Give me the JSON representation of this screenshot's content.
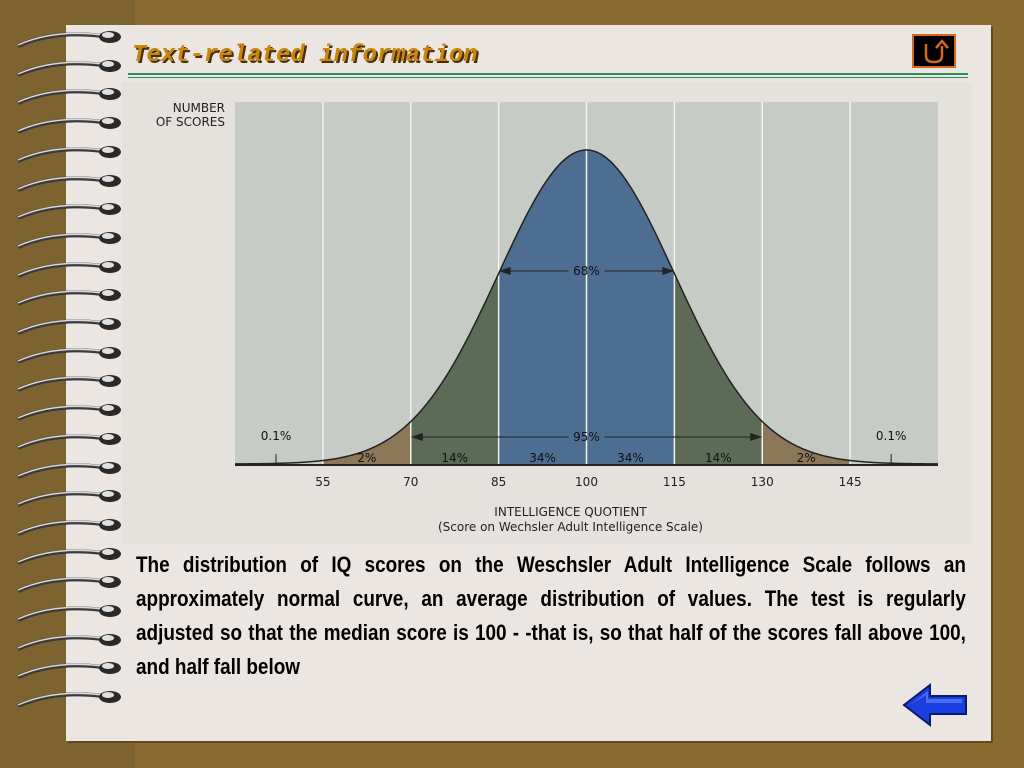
{
  "header": {
    "title": "Text-related information"
  },
  "nav": {
    "home_icon": "return-arrow-icon",
    "back_icon": "left-arrow-icon"
  },
  "colors": {
    "center": "#4d6d91",
    "middle": "#5c6b55",
    "tail": "#8d7759",
    "background": "#c7cbc5",
    "title": "#c8860a",
    "accent": "#2e8a57"
  },
  "chart_data": {
    "type": "area",
    "title": "",
    "xlabel": "INTELLIGENCE QUOTIENT",
    "xlabel_sub": "(Score on Wechsler Adult Intelligence Scale)",
    "ylabel": "NUMBER OF SCORES",
    "ylabel_lines": [
      "NUMBER",
      "OF SCORES"
    ],
    "x_ticks": [
      55,
      70,
      85,
      100,
      115,
      130,
      145
    ],
    "xlim": [
      40,
      160
    ],
    "distribution": {
      "kind": "normal",
      "mean": 100,
      "sd": 15
    },
    "segments": [
      {
        "from": 55,
        "to": 70,
        "label": "2%"
      },
      {
        "from": 70,
        "to": 85,
        "label": "14%"
      },
      {
        "from": 85,
        "to": 100,
        "label": "34%"
      },
      {
        "from": 100,
        "to": 115,
        "label": "34%"
      },
      {
        "from": 115,
        "to": 130,
        "label": "14%"
      },
      {
        "from": 130,
        "to": 145,
        "label": "2%"
      }
    ],
    "tails": [
      {
        "side": "left",
        "at": 47,
        "label": "0.1%"
      },
      {
        "side": "right",
        "at": 152,
        "label": "0.1%"
      }
    ],
    "brackets": [
      {
        "from": 85,
        "to": 115,
        "label": "68%"
      },
      {
        "from": 70,
        "to": 130,
        "label": "95%"
      }
    ],
    "grid": true
  },
  "caption": "The distribution of IQ scores on the Weschsler Adult Intelligence Scale follows an approximately normal curve, an average distribution of values. The test is regularly adjusted so that the median score is 100 - -that is, so that half of the scores fall above 100, and half fall below"
}
